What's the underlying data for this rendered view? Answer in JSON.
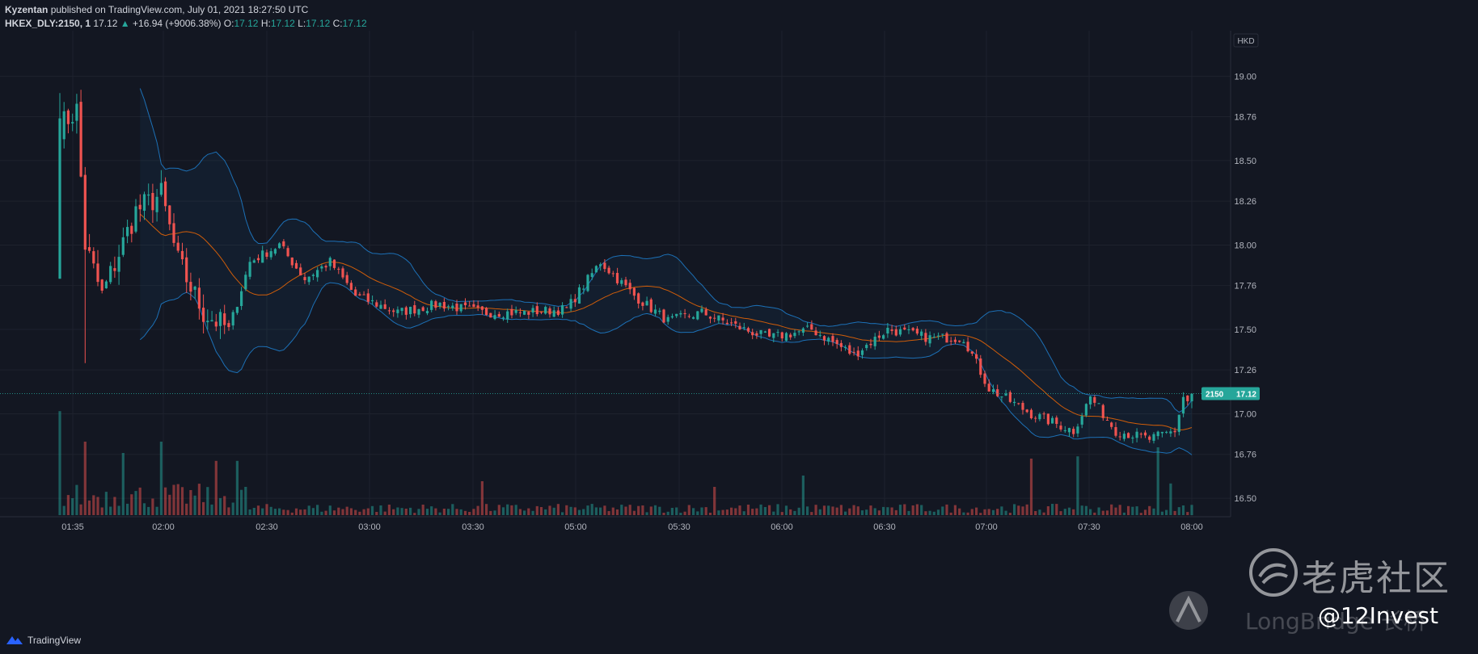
{
  "header": {
    "author": "Kyzentan",
    "published": "published on TradingView.com, July 01, 2021 18:27:50 UTC",
    "symbol": "HKEX_DLY:2150, 1",
    "last": "17.12",
    "change": "+16.94 (+9006.38%)",
    "o_label": "O:",
    "o_value": "17.12",
    "h_label": "H:",
    "h_value": "17.12",
    "l_label": "L:",
    "l_value": "17.12",
    "c_label": "C:",
    "c_value": "17.12"
  },
  "footer": {
    "brand": "TradingView"
  },
  "watermark": {
    "cn_text": "老虎社区",
    "longbridge": "LongBridge 长桥",
    "handle": "@12Invest"
  },
  "chart_data": {
    "type": "candlestick",
    "currency": "HKD",
    "ylim": [
      16.4,
      19.26
    ],
    "y_ticks": [
      16.5,
      16.76,
      17.0,
      17.26,
      17.5,
      17.76,
      18.0,
      18.26,
      18.5,
      18.76,
      19.0
    ],
    "y_tick_labels": [
      "16.50",
      "16.76",
      "17.00",
      "17.26",
      "17.50",
      "17.76",
      "18.00",
      "18.26",
      "18.50",
      "18.76",
      "19.00"
    ],
    "x_ticks": [
      "01:35",
      "02:00",
      "02:30",
      "03:00",
      "03:30",
      "05:00",
      "05:30",
      "06:00",
      "06:30",
      "07:00",
      "07:30",
      "08:00"
    ],
    "price_label": {
      "symbol": "2150",
      "value": "17.12"
    },
    "close_anchors": [
      [
        0,
        18.7
      ],
      [
        4,
        18.8
      ],
      [
        6,
        18.0
      ],
      [
        10,
        17.7
      ],
      [
        18,
        18.2
      ],
      [
        24,
        18.3
      ],
      [
        28,
        17.9
      ],
      [
        34,
        17.6
      ],
      [
        40,
        17.5
      ],
      [
        45,
        17.9
      ],
      [
        52,
        18.0
      ],
      [
        58,
        17.8
      ],
      [
        64,
        17.9
      ],
      [
        70,
        17.7
      ],
      [
        80,
        17.6
      ],
      [
        90,
        17.65
      ],
      [
        100,
        17.6
      ],
      [
        110,
        17.6
      ],
      [
        120,
        17.62
      ],
      [
        128,
        17.9
      ],
      [
        136,
        17.7
      ],
      [
        144,
        17.55
      ],
      [
        152,
        17.6
      ],
      [
        162,
        17.5
      ],
      [
        168,
        17.45
      ],
      [
        178,
        17.5
      ],
      [
        188,
        17.35
      ],
      [
        196,
        17.5
      ],
      [
        206,
        17.45
      ],
      [
        214,
        17.45
      ],
      [
        220,
        17.15
      ],
      [
        230,
        17.0
      ],
      [
        240,
        16.9
      ],
      [
        244,
        17.1
      ],
      [
        250,
        16.9
      ],
      [
        258,
        16.85
      ],
      [
        264,
        16.9
      ],
      [
        266,
        17.1
      ],
      [
        268,
        17.05
      ]
    ],
    "volume_spikes": [
      [
        0,
        0.92
      ],
      [
        6,
        0.65
      ],
      [
        15,
        0.55
      ],
      [
        24,
        0.65
      ],
      [
        37,
        0.48
      ],
      [
        42,
        0.48
      ],
      [
        100,
        0.3
      ],
      [
        155,
        0.25
      ],
      [
        176,
        0.35
      ],
      [
        230,
        0.5
      ],
      [
        241,
        0.52
      ],
      [
        260,
        0.6
      ],
      [
        263,
        0.28
      ]
    ],
    "indicators": [
      "Bollinger Bands (20, 2)",
      "SMA 20",
      "Volume"
    ],
    "colors": {
      "up": "#26a69a",
      "down": "#ef5350",
      "band": "#2196f3",
      "basis": "#ff6d00",
      "background": "#131722",
      "grid": "#1e222d"
    }
  }
}
